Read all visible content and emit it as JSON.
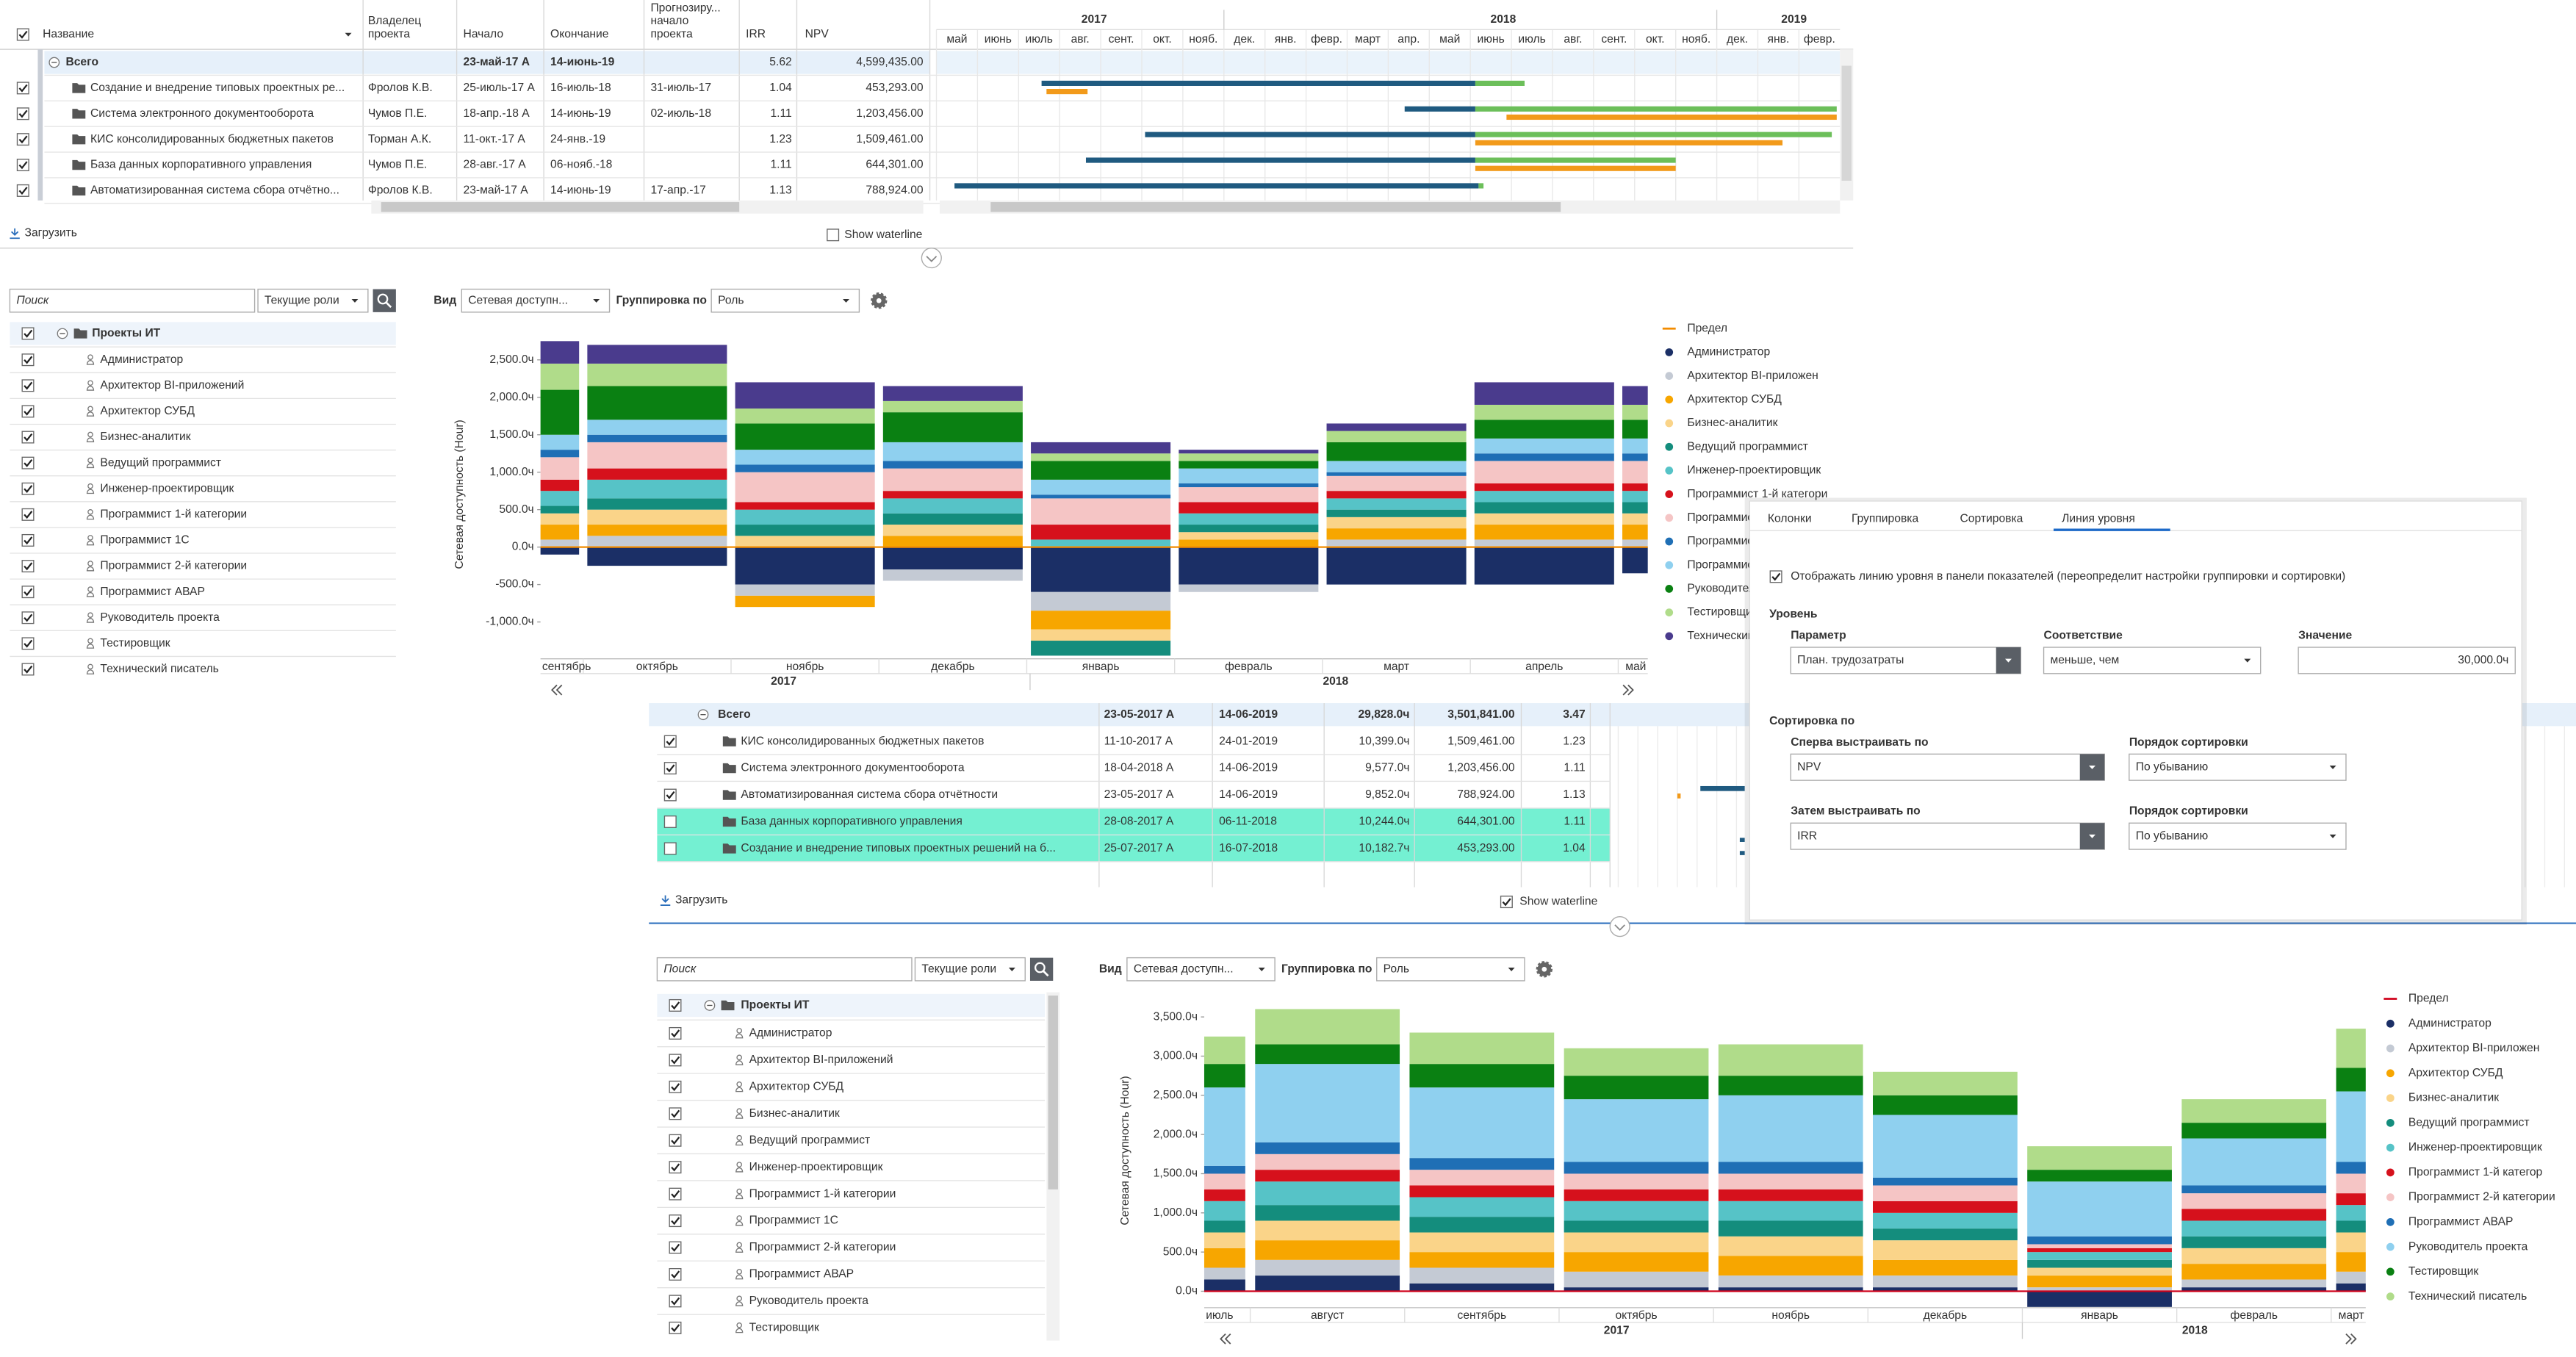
{
  "gantt": {
    "columns": [
      [
        "Название"
      ],
      [
        "Владелец",
        "проекта"
      ],
      [
        "Начало"
      ],
      [
        "Окончание"
      ],
      [
        "Прогнозиру...",
        "начало",
        "проекта"
      ],
      [
        "IRR"
      ],
      [
        "NPV"
      ]
    ],
    "years": [
      "2017",
      "2018",
      "2019"
    ],
    "months": [
      "май",
      "июнь",
      "июль",
      "авг.",
      "сент.",
      "окт.",
      "нояб.",
      "дек.",
      "янв.",
      "февр.",
      "март",
      "апр.",
      "май",
      "июнь",
      "июль",
      "авг.",
      "сент.",
      "окт.",
      "нояб.",
      "дек.",
      "янв.",
      "февр."
    ],
    "rows": [
      [
        "Всего",
        null,
        "23-май-17 А",
        "14-июнь-19",
        null,
        "5.62",
        "4,599,435.00"
      ],
      [
        "Создание и внедрение типовых проектных ре...",
        "Фролов К.В.",
        "25-июль-17 А",
        "16-июль-18",
        "31-июль-17",
        "1.04",
        "453,293.00"
      ],
      [
        "Система электронного документооборота",
        "Чумов П.Е.",
        "18-апр.-18 А",
        "14-июнь-19",
        "02-июль-18",
        "1.11",
        "1,203,456.00"
      ],
      [
        "КИС консолидированных бюджетных пакетов",
        "Торман А.К.",
        "11-окт.-17 А",
        "24-янв.-19",
        null,
        "1.23",
        "1,509,461.00"
      ],
      [
        "База данных корпоративного управления",
        "Чумов П.Е.",
        "28-авг.-17 А",
        "06-нояб.-18",
        null,
        "1.11",
        "644,301.00"
      ],
      [
        "Автоматизированная система сбора отчётно...",
        "Фролов К.В.",
        "23-май-17 А",
        "14-июнь-19",
        "17-апр.-17",
        "1.13",
        "788,924.00"
      ]
    ],
    "load": "Загрузить",
    "waterline": "Show waterline"
  },
  "panel1": {
    "search": "Поиск",
    "roles_filter": "Текущие роли",
    "root": "Проекты ИТ",
    "roles": [
      "Администратор",
      "Архитектор BI-приложений",
      "Архитектор СУБД",
      "Бизнес-аналитик",
      "Ведущий программист",
      "Инженер-проектировщик",
      "Программист 1-й категории",
      "Программист 1С",
      "Программист 2-й категории",
      "Программист АВАР",
      "Руководитель проекта",
      "Тестировщик",
      "Технический писатель"
    ],
    "view_label": "Вид",
    "view": "Сетевая доступн...",
    "group_label": "Группировка по",
    "group": "Роль"
  },
  "chart_data": [
    {
      "type": "bar",
      "stacked": true,
      "y_label": "Сетевая доступность (Hour)",
      "categories": [
        "сентябрь",
        "октябрь",
        "ноябрь",
        "декабрь",
        "январь",
        "февраль",
        "март",
        "апрель",
        "май"
      ],
      "years": [
        "2017",
        "2018"
      ],
      "ylim": [
        -1450,
        2900
      ],
      "yticks": [
        {
          "value": -1000,
          "label": "-1,000.0ч"
        },
        {
          "value": -500,
          "label": "-500.0ч"
        },
        {
          "value": 0,
          "label": "0.0ч"
        },
        {
          "value": 500,
          "label": "500.0ч"
        },
        {
          "value": 1000,
          "label": "1,000.0ч"
        },
        {
          "value": 1500,
          "label": "1,500.0ч"
        },
        {
          "value": 2000,
          "label": "2,000.0ч"
        },
        {
          "value": 2500,
          "label": "2,500.0ч"
        }
      ],
      "limit": {
        "name": "Предел",
        "value": 0,
        "color": "#f28c00"
      },
      "series": [
        {
          "name": "Администратор",
          "color": "#1b2f66",
          "values": [
            -100,
            -250,
            -500,
            -300,
            -600,
            -500,
            -500,
            -500,
            -350
          ]
        },
        {
          "name": "Архитектор BI-приложен",
          "color": "#c4cad4",
          "values": [
            100,
            150,
            -150,
            -150,
            -250,
            -100,
            100,
            100,
            100
          ]
        },
        {
          "name": "Архитектор СУБД",
          "color": "#f7a600",
          "values": [
            200,
            150,
            -150,
            150,
            -250,
            100,
            150,
            200,
            200
          ]
        },
        {
          "name": "Бизнес-аналитик",
          "color": "#fad489",
          "values": [
            150,
            200,
            150,
            150,
            -150,
            100,
            150,
            150,
            150
          ]
        },
        {
          "name": "Ведущий программист",
          "color": "#148d7d",
          "values": [
            100,
            150,
            150,
            150,
            -200,
            100,
            100,
            150,
            150
          ]
        },
        {
          "name": "Инженер-проектировщик",
          "color": "#56c3c7",
          "values": [
            200,
            250,
            200,
            200,
            100,
            150,
            150,
            150,
            150
          ]
        },
        {
          "name": "Программист 1-й категори",
          "color": "#d6111c",
          "values": [
            150,
            150,
            100,
            100,
            200,
            150,
            100,
            100,
            100
          ]
        },
        {
          "name": "Программист 1С",
          "color": "#f5c5c5",
          "values": [
            300,
            350,
            400,
            300,
            350,
            200,
            200,
            300,
            300
          ]
        },
        {
          "name": "Программист 2-й категории",
          "color": "#1f6fb5",
          "values": [
            100,
            100,
            100,
            100,
            50,
            50,
            50,
            100,
            100
          ]
        },
        {
          "name": "Программист АВАР",
          "color": "#8fd0ef",
          "values": [
            200,
            200,
            200,
            250,
            200,
            200,
            150,
            200,
            200
          ]
        },
        {
          "name": "Руководитель проекта",
          "color": "#0a8012",
          "values": [
            600,
            450,
            350,
            400,
            250,
            100,
            250,
            250,
            250
          ]
        },
        {
          "name": "Тестировщик",
          "color": "#b0dc8a",
          "values": [
            350,
            300,
            200,
            150,
            100,
            100,
            150,
            200,
            200
          ]
        },
        {
          "name": "Технический писатель",
          "color": "#4a3b8d",
          "values": [
            300,
            250,
            350,
            200,
            150,
            50,
            100,
            300,
            250
          ]
        }
      ]
    },
    {
      "type": "bar",
      "stacked": true,
      "y_label": "Сетевая доступность (Hour)",
      "categories": [
        "июль",
        "август",
        "сентябрь",
        "октябрь",
        "ноябрь",
        "декабрь",
        "январь",
        "февраль",
        "март"
      ],
      "years": [
        "2017",
        "2018"
      ],
      "ylim": [
        -300,
        3800
      ],
      "yticks": [
        {
          "value": 0,
          "label": "0.0ч"
        },
        {
          "value": 500,
          "label": "500.0ч"
        },
        {
          "value": 1000,
          "label": "1,000.0ч"
        },
        {
          "value": 1500,
          "label": "1,500.0ч"
        },
        {
          "value": 2000,
          "label": "2,000.0ч"
        },
        {
          "value": 2500,
          "label": "2,500.0ч"
        },
        {
          "value": 3000,
          "label": "3,000.0ч"
        },
        {
          "value": 3500,
          "label": "3,500.0ч"
        }
      ],
      "limit": {
        "name": "Предел",
        "value": 0,
        "color": "#d0021b"
      },
      "series": [
        {
          "name": "Администратор",
          "color": "#1b2f66",
          "values": [
            150,
            200,
            100,
            50,
            50,
            50,
            -200,
            50,
            100
          ]
        },
        {
          "name": "Архитектор BI-приложен",
          "color": "#c4cad4",
          "values": [
            150,
            200,
            200,
            200,
            150,
            150,
            50,
            100,
            150
          ]
        },
        {
          "name": "Архитектор СУБД",
          "color": "#f7a600",
          "values": [
            250,
            250,
            200,
            250,
            250,
            200,
            150,
            200,
            250
          ]
        },
        {
          "name": "Бизнес-аналитик",
          "color": "#fad489",
          "values": [
            200,
            250,
            250,
            250,
            250,
            250,
            100,
            200,
            250
          ]
        },
        {
          "name": "Ведущий программист",
          "color": "#148d7d",
          "values": [
            150,
            200,
            200,
            150,
            200,
            150,
            100,
            150,
            150
          ]
        },
        {
          "name": "Инженер-проектировщик",
          "color": "#56c3c7",
          "values": [
            250,
            300,
            250,
            250,
            250,
            200,
            100,
            200,
            200
          ]
        },
        {
          "name": "Программист 1-й категор",
          "color": "#d6111c",
          "values": [
            150,
            150,
            150,
            150,
            150,
            150,
            50,
            150,
            150
          ]
        },
        {
          "name": "Программист 2-й категории",
          "color": "#f5c5c5",
          "values": [
            200,
            200,
            200,
            200,
            200,
            200,
            50,
            200,
            250
          ]
        },
        {
          "name": "Программист АВАР",
          "color": "#1f6fb5",
          "values": [
            100,
            150,
            150,
            150,
            150,
            100,
            100,
            100,
            150
          ]
        },
        {
          "name": "Руководитель проекта",
          "color": "#8fd0ef",
          "values": [
            1000,
            1000,
            900,
            800,
            850,
            800,
            700,
            600,
            900
          ]
        },
        {
          "name": "Тестировщик",
          "color": "#0a8012",
          "values": [
            300,
            250,
            300,
            300,
            250,
            250,
            150,
            200,
            300
          ]
        },
        {
          "name": "Технический писатель",
          "color": "#b0dc8a",
          "values": [
            350,
            450,
            400,
            350,
            400,
            300,
            300,
            300,
            500
          ]
        }
      ]
    }
  ],
  "dialog": {
    "tabs": [
      "Колонки",
      "Группировка",
      "Сортировка",
      "Линия уровня"
    ],
    "active_tab": 3,
    "show_line": "Отображать линию уровня в панели показателей (переопределит настройки группировки и сортировки)",
    "level": "Уровень",
    "param_label": "Параметр",
    "param": "План. трудозатраты",
    "match_label": "Соответствие",
    "match": "меньше, чем",
    "value_label": "Значение",
    "value": "30,000.0ч",
    "sort": "Сортировка по",
    "first_label": "Сперва выстраивать по",
    "first": "NPV",
    "order_label": "Порядок сортировки",
    "first_order": "По убыванию",
    "then_label": "Затем выстраивать по",
    "then": "IRR",
    "then_order": "По убыванию"
  },
  "table2": {
    "total": [
      "Всего",
      "23-05-2017 А",
      "14-06-2019",
      "29,828.0ч",
      "3,501,841.00",
      "3.47"
    ],
    "rows": [
      {
        "cells": [
          "КИС консолидированных бюджетных пакетов",
          "11-10-2017 А",
          "24-01-2019",
          "10,399.0ч",
          "1,509,461.00",
          "1.23"
        ],
        "checked": true,
        "selected": false
      },
      {
        "cells": [
          "Система электронного документооборота",
          "18-04-2018 А",
          "14-06-2019",
          "9,577.0ч",
          "1,203,456.00",
          "1.11"
        ],
        "checked": true,
        "selected": false
      },
      {
        "cells": [
          "Автоматизированная система сбора отчётности",
          "23-05-2017 А",
          "14-06-2019",
          "9,852.0ч",
          "788,924.00",
          "1.13"
        ],
        "checked": true,
        "selected": false
      },
      {
        "cells": [
          "База данных корпоративного управления",
          "28-08-2017 А",
          "06-11-2018",
          "10,244.0ч",
          "644,301.00",
          "1.11"
        ],
        "checked": false,
        "selected": true
      },
      {
        "cells": [
          "Создание и внедрение типовых проектных решений на б...",
          "25-07-2017 А",
          "16-07-2018",
          "10,182.7ч",
          "453,293.00",
          "1.04"
        ],
        "checked": false,
        "selected": true
      }
    ],
    "load": "Загрузить",
    "waterline": "Show waterline"
  },
  "panel2": {
    "search": "Поиск",
    "roles_filter": "Текущие роли",
    "root": "Проекты ИТ",
    "roles": [
      "Администратор",
      "Архитектор BI-приложений",
      "Архитектор СУБД",
      "Бизнес-аналитик",
      "Ведущий программист",
      "Инженер-проектировщик",
      "Программист 1-й категории",
      "Программист 1С",
      "Программист 2-й категории",
      "Программист АВАР",
      "Руководитель проекта",
      "Тестировщик"
    ],
    "view_label": "Вид",
    "view": "Сетевая доступн...",
    "group_label": "Группировка по",
    "group": "Роль"
  }
}
